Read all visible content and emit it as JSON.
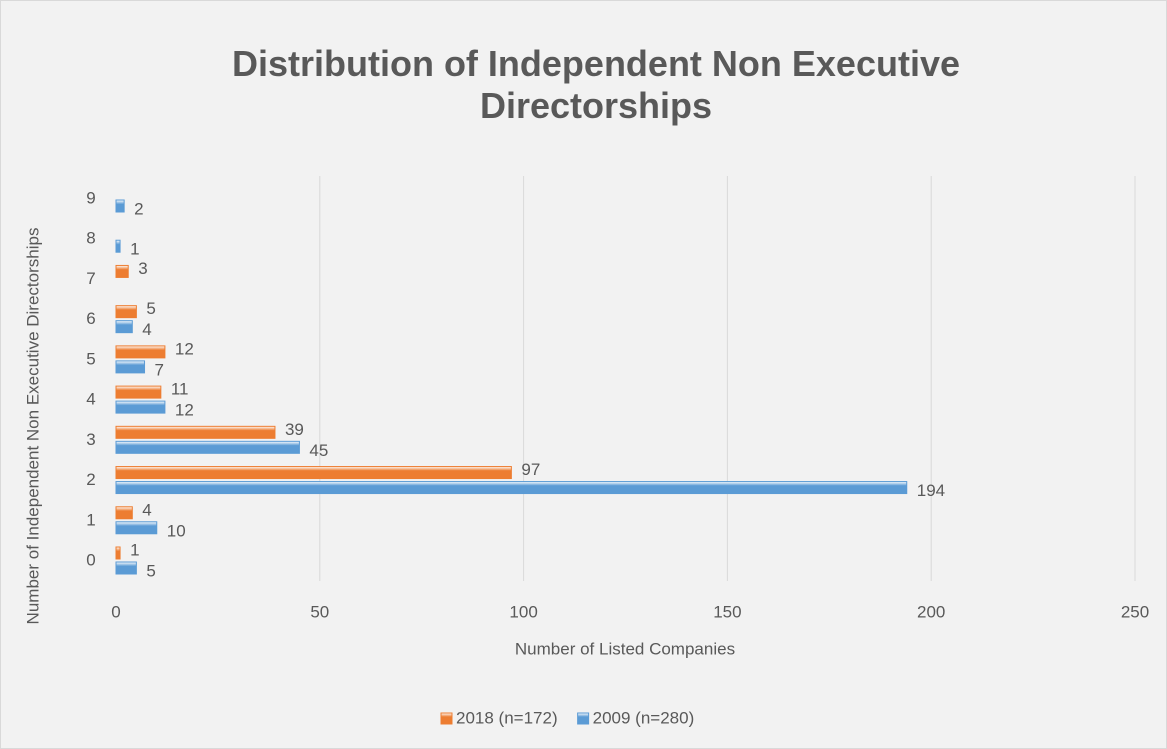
{
  "chart_data": {
    "type": "hbar",
    "title": "Distribution of Independent Non Executive Directorships",
    "x_label": "Number of Listed Companies",
    "y_label": "Number of Independent Non Executive Directorships",
    "categories": [
      "0",
      "1",
      "2",
      "3",
      "4",
      "5",
      "6",
      "7",
      "8",
      "9"
    ],
    "series": [
      {
        "name": "2018 (n=172)",
        "color": "#ed7d31",
        "values": [
          1,
          4,
          97,
          39,
          11,
          12,
          5,
          3,
          null,
          null
        ]
      },
      {
        "name": "2009 (n=280)",
        "color": "#5b9bd5",
        "values": [
          5,
          10,
          194,
          45,
          12,
          7,
          4,
          null,
          1,
          2
        ]
      }
    ],
    "xlim": [
      0,
      250
    ],
    "xticks": [
      0,
      50,
      100,
      150,
      200,
      250
    ],
    "grid": true,
    "legend": "bottom"
  }
}
